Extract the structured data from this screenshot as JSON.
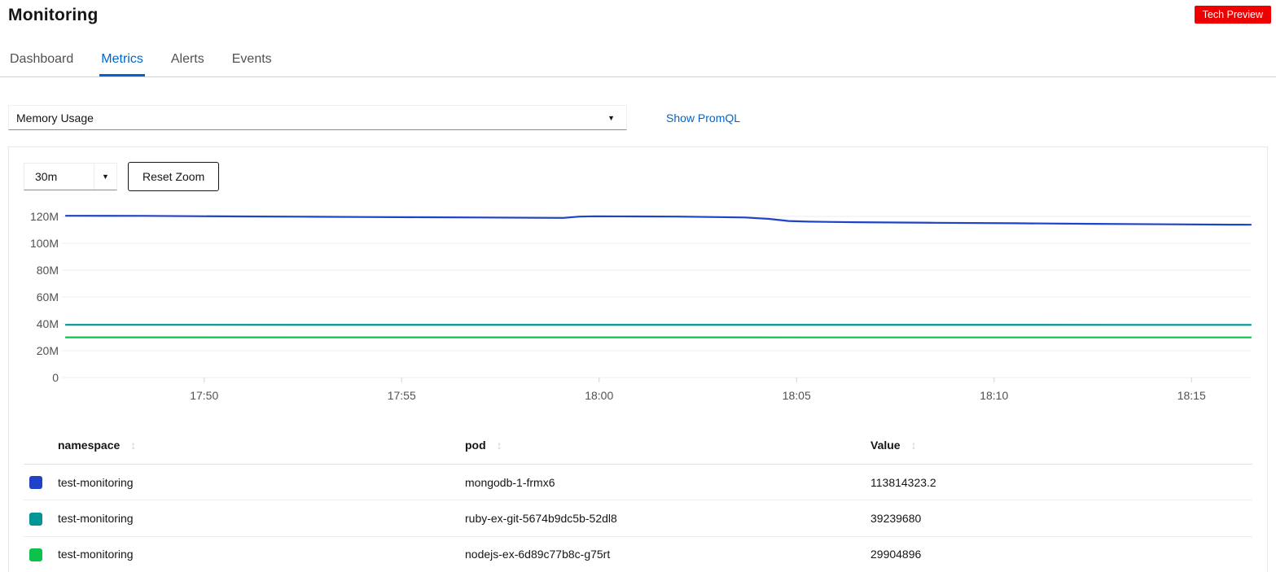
{
  "page": {
    "title": "Monitoring",
    "badge": "Tech Preview"
  },
  "tabs": [
    {
      "label": "Dashboard",
      "active": false
    },
    {
      "label": "Metrics",
      "active": true
    },
    {
      "label": "Alerts",
      "active": false
    },
    {
      "label": "Events",
      "active": false
    }
  ],
  "query": {
    "selected": "Memory Usage",
    "show_promql": "Show PromQL"
  },
  "controls": {
    "time_range": "30m",
    "reset_zoom": "Reset Zoom"
  },
  "colors": {
    "accent": "#0066cc",
    "badge": "#ee0000",
    "series_blue": "#1f42c8",
    "series_teal": "#009596",
    "series_green": "#0dc24a"
  },
  "chart_data": {
    "type": "line",
    "title": "",
    "xlabel": "",
    "ylabel": "",
    "x_range": [
      0,
      30
    ],
    "ylim": [
      0,
      120
    ],
    "grid": true,
    "legend_position": "none",
    "y_ticks": [
      {
        "label": "120M",
        "v": 120
      },
      {
        "label": "100M",
        "v": 100
      },
      {
        "label": "80M",
        "v": 80
      },
      {
        "label": "60M",
        "v": 60
      },
      {
        "label": "40M",
        "v": 40
      },
      {
        "label": "20M",
        "v": 20
      },
      {
        "label": "0",
        "v": 0
      }
    ],
    "x_ticks": [
      {
        "label": "17:50",
        "t": 3.5
      },
      {
        "label": "17:55",
        "t": 8.5
      },
      {
        "label": "18:00",
        "t": 13.5
      },
      {
        "label": "18:05",
        "t": 18.5
      },
      {
        "label": "18:10",
        "t": 23.5
      },
      {
        "label": "18:15",
        "t": 28.5
      }
    ],
    "unit": "bytes (M = 1e6)",
    "series": [
      {
        "name": "mongodb-1-frmx6",
        "color": "#1f42c8",
        "points": [
          [
            0,
            120.5
          ],
          [
            2,
            120.4
          ],
          [
            3.2,
            120.2
          ],
          [
            4.5,
            120.0
          ],
          [
            6,
            119.8
          ],
          [
            7.5,
            119.6
          ],
          [
            9,
            119.4
          ],
          [
            10.5,
            119.2
          ],
          [
            12,
            119.0
          ],
          [
            12.6,
            118.9
          ],
          [
            13.0,
            119.9
          ],
          [
            13.4,
            120.1
          ],
          [
            14.5,
            120.0
          ],
          [
            15.5,
            119.9
          ],
          [
            16.3,
            119.6
          ],
          [
            17.2,
            119.2
          ],
          [
            17.8,
            118.2
          ],
          [
            18.3,
            116.6
          ],
          [
            18.8,
            116.1
          ],
          [
            20,
            115.7
          ],
          [
            22,
            115.3
          ],
          [
            24,
            114.9
          ],
          [
            26,
            114.5
          ],
          [
            28,
            114.1
          ],
          [
            29.5,
            113.9
          ],
          [
            30,
            113.8
          ]
        ]
      },
      {
        "name": "ruby-ex-git-5674b9dc5b-52dl8",
        "color": "#009596",
        "points": [
          [
            0,
            39.3
          ],
          [
            30,
            39.2
          ]
        ]
      },
      {
        "name": "nodejs-ex-6d89c77b8c-g75rt",
        "color": "#0dc24a",
        "points": [
          [
            0,
            29.95
          ],
          [
            30,
            29.9
          ]
        ]
      }
    ]
  },
  "table": {
    "headers": [
      "namespace",
      "pod",
      "Value"
    ],
    "rows": [
      {
        "color": "#1f42c8",
        "namespace": "test-monitoring",
        "pod": "mongodb-1-frmx6",
        "value": "113814323.2"
      },
      {
        "color": "#009596",
        "namespace": "test-monitoring",
        "pod": "ruby-ex-git-5674b9dc5b-52dl8",
        "value": "39239680"
      },
      {
        "color": "#0dc24a",
        "namespace": "test-monitoring",
        "pod": "nodejs-ex-6d89c77b8c-g75rt",
        "value": "29904896"
      }
    ]
  }
}
